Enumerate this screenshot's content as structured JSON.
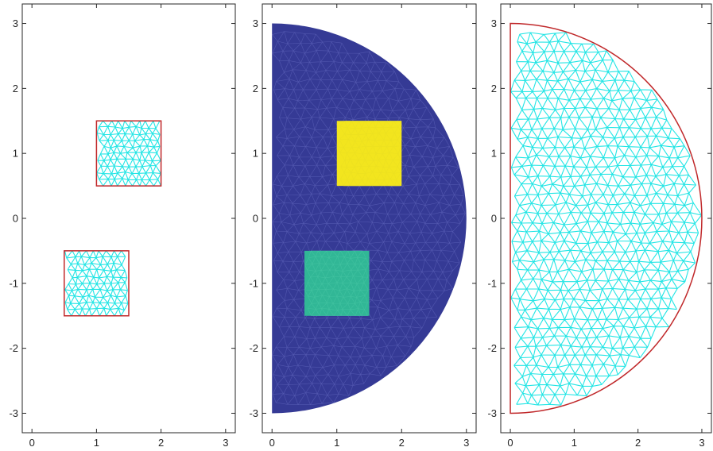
{
  "chart_data": [
    {
      "type": "mesh",
      "title": "",
      "xlabel": "",
      "ylabel": "",
      "xlim": [
        -0.15,
        3.15
      ],
      "ylim": [
        -3.3,
        3.3
      ],
      "xticks": [
        0,
        1,
        2,
        3
      ],
      "yticks": [
        -3,
        -2,
        -1,
        0,
        1,
        2,
        3
      ],
      "regions": [
        {
          "shape": "rect",
          "x": [
            1.0,
            2.0
          ],
          "y": [
            0.5,
            1.5
          ],
          "fill": "#22e5e5",
          "mesh_color": "#22e5e5",
          "outline": "#c0282a"
        },
        {
          "shape": "rect",
          "x": [
            0.5,
            1.5
          ],
          "y": [
            -1.5,
            -0.5
          ],
          "fill": "#22e5e5",
          "mesh_color": "#22e5e5",
          "outline": "#c0282a"
        }
      ]
    },
    {
      "type": "mesh",
      "title": "",
      "xlabel": "",
      "ylabel": "",
      "xlim": [
        -0.15,
        3.15
      ],
      "ylim": [
        -3.3,
        3.3
      ],
      "xticks": [
        0,
        1,
        2,
        3
      ],
      "yticks": [
        -3,
        -2,
        -1,
        0,
        1,
        2,
        3
      ],
      "regions": [
        {
          "shape": "half-disk",
          "center": [
            0,
            0
          ],
          "radius": 3,
          "fill": "#353a95",
          "mesh_color": "#6a70c4"
        },
        {
          "shape": "rect",
          "x": [
            1.0,
            2.0
          ],
          "y": [
            0.5,
            1.5
          ],
          "fill": "#f2e51e",
          "mesh_color": "#e8dd22"
        },
        {
          "shape": "rect",
          "x": [
            0.5,
            1.5
          ],
          "y": [
            -1.5,
            -0.5
          ],
          "fill": "#31b796",
          "mesh_color": "#4ccaa8"
        }
      ]
    },
    {
      "type": "mesh",
      "title": "",
      "xlabel": "",
      "ylabel": "",
      "xlim": [
        -0.15,
        3.15
      ],
      "ylim": [
        -3.3,
        3.3
      ],
      "xticks": [
        0,
        1,
        2,
        3
      ],
      "yticks": [
        -3,
        -2,
        -1,
        0,
        1,
        2,
        3
      ],
      "regions": [
        {
          "shape": "half-disk",
          "center": [
            0,
            0
          ],
          "radius": 3,
          "fill": "#22e5e5",
          "mesh_color": "#22e5e5",
          "outline": "#c0282a"
        }
      ]
    }
  ]
}
